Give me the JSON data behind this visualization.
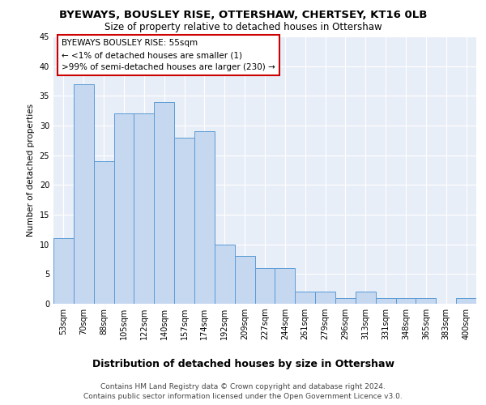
{
  "title": "BYEWAYS, BOUSLEY RISE, OTTERSHAW, CHERTSEY, KT16 0LB",
  "subtitle": "Size of property relative to detached houses in Ottershaw",
  "xlabel": "Distribution of detached houses by size in Ottershaw",
  "ylabel": "Number of detached properties",
  "bar_labels": [
    "53sqm",
    "70sqm",
    "88sqm",
    "105sqm",
    "122sqm",
    "140sqm",
    "157sqm",
    "174sqm",
    "192sqm",
    "209sqm",
    "227sqm",
    "244sqm",
    "261sqm",
    "279sqm",
    "296sqm",
    "313sqm",
    "331sqm",
    "348sqm",
    "365sqm",
    "383sqm",
    "400sqm"
  ],
  "bar_values": [
    11,
    37,
    24,
    32,
    32,
    34,
    28,
    29,
    10,
    8,
    6,
    6,
    2,
    2,
    1,
    2,
    1,
    1,
    1,
    0,
    1
  ],
  "bar_color": "#c5d8f0",
  "bar_edge_color": "#5b9bd5",
  "annotation_border_color": "#cc0000",
  "annotation_text_line1": "BYEWAYS BOUSLEY RISE: 55sqm",
  "annotation_text_line2": "← <1% of detached houses are smaller (1)",
  "annotation_text_line3": ">99% of semi-detached houses are larger (230) →",
  "ylim": [
    0,
    45
  ],
  "yticks": [
    0,
    5,
    10,
    15,
    20,
    25,
    30,
    35,
    40,
    45
  ],
  "plot_background": "#e8eef8",
  "grid_color": "#ffffff",
  "footer_line1": "Contains HM Land Registry data © Crown copyright and database right 2024.",
  "footer_line2": "Contains public sector information licensed under the Open Government Licence v3.0.",
  "title_fontsize": 9.5,
  "subtitle_fontsize": 8.5,
  "xlabel_fontsize": 9,
  "ylabel_fontsize": 7.5,
  "tick_fontsize": 7,
  "annotation_fontsize": 7.5,
  "footer_fontsize": 6.5
}
